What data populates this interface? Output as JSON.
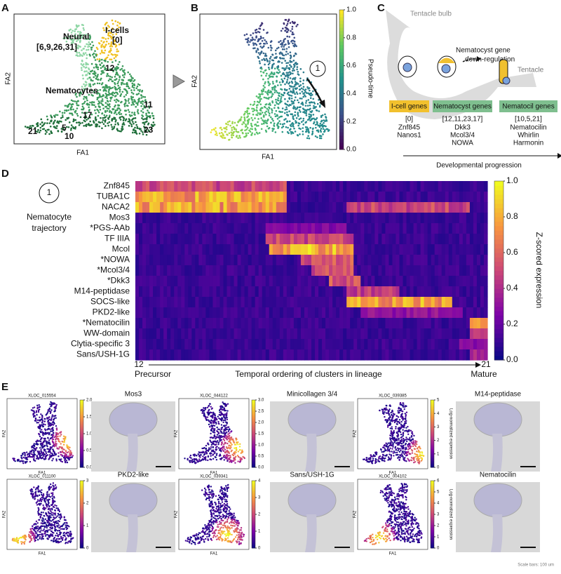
{
  "panelA": {
    "letter": "A",
    "neural": "Neural",
    "neural_clusters": "[6,9,26,31]",
    "icells": "I-cells",
    "icells_cluster": "[0]",
    "nematocytes": "Nematocytes",
    "cluster_labels": [
      "12",
      "11",
      "17",
      "5",
      "10",
      "21",
      "23"
    ],
    "xlabel": "FA1",
    "ylabel": "FA2"
  },
  "panelB": {
    "letter": "B",
    "xlabel": "FA1",
    "ylabel": "FA2",
    "trajectory": "1",
    "colorbar_label": "Pseudo-time",
    "colorbar_ticks": [
      "0.0",
      "0.2",
      "0.4",
      "0.6",
      "0.8",
      "1.0"
    ]
  },
  "panelC": {
    "letter": "C",
    "bulb": "Tentacle bulb",
    "downreg": [
      "Nematocyst gene",
      "down-regulation"
    ],
    "tentacle": "Tentacle",
    "boxes": [
      {
        "title": "I-cell genes",
        "clusters": "[0]",
        "genes": [
          "Znf845",
          "Nanos1"
        ]
      },
      {
        "title": "Nematocyst genes",
        "clusters": "[12,11,23,17]",
        "genes": [
          "Dkk3",
          "Mcol3/4",
          "NOWA"
        ]
      },
      {
        "title": "Nematocil genes",
        "clusters": "[10,5,21]",
        "genes": [
          "Nematocilin",
          "Whirlin",
          "Harmonin"
        ]
      }
    ],
    "progression": "Developmental progression"
  },
  "panelD": {
    "letter": "D",
    "trajectory": "1",
    "trajectory_label": [
      "Nematocyte",
      "trajectory"
    ],
    "genes": [
      "Znf845",
      "TUBA1C",
      "NACA2",
      "Mos3",
      "*PGS-AAb",
      "TF IIIA",
      "Mcol",
      "*NOWA",
      "*Mcol3/4",
      "*Dkk3",
      "M14-peptidase",
      "SOCS-like",
      "PKD2-like",
      "*Nematocilin",
      "WW-domain",
      "Clytia-specific 3",
      "Sans/USH-1G"
    ],
    "colorbar_ticks": [
      "0.0",
      "0.2",
      "0.4",
      "0.6",
      "0.8",
      "1.0"
    ],
    "colorbar_label": "Z-scored expression",
    "start_cluster": "12",
    "start_label": "Precursor",
    "axis_label": "Temporal ordering of clusters in lineage",
    "end_cluster": "21",
    "end_label": "Mature"
  },
  "panelE": {
    "letter": "E",
    "scale_note": "Scale bars: 100 um",
    "colorbar_label": "Log-normalized expression",
    "panels": [
      {
        "gene_id": "XLOC_015554",
        "title": "Mos3",
        "ticks": [
          "0.0",
          "0.5",
          "1.0",
          "1.5",
          "2.0"
        ]
      },
      {
        "gene_id": "XLOC_044122",
        "title": "Minicollagen 3/4",
        "ticks": [
          "0.0",
          "0.5",
          "1.0",
          "1.5",
          "2.0",
          "2.5",
          "3.0"
        ]
      },
      {
        "gene_id": "XLOC_039385",
        "title": "M14-peptidase",
        "ticks": [
          "0",
          "1",
          "2",
          "3",
          "4",
          "5"
        ]
      },
      {
        "gene_id": "XLOC_011100",
        "title": "PKD2-like",
        "ticks": [
          "0",
          "1",
          "2",
          "3"
        ]
      },
      {
        "gene_id": "XLOC_039341",
        "title": "Sans/USH-1G",
        "ticks": [
          "0",
          "1",
          "2",
          "3",
          "4"
        ]
      },
      {
        "gene_id": "XLOC_004102",
        "title": "Nematocilin",
        "ticks": [
          "0",
          "1",
          "2",
          "3",
          "4",
          "5",
          "6"
        ]
      }
    ],
    "xlabel": "FA1",
    "ylabel": "FA2"
  }
}
